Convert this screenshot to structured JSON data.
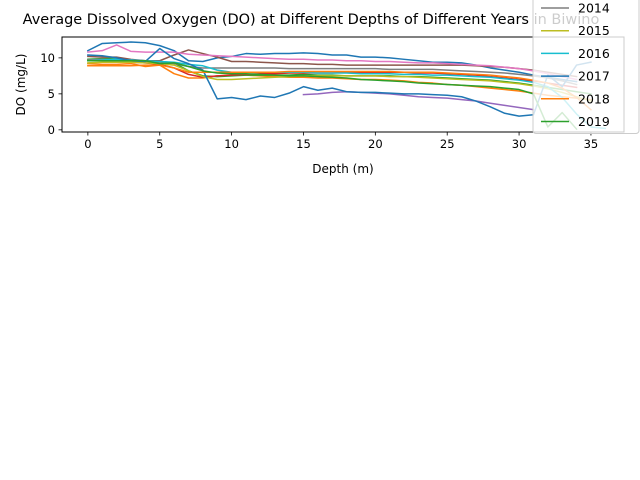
{
  "chart_data": {
    "type": "line",
    "title": "Average Dissolved Oxygen (DO) at Different Depths of Different Years in Biwino",
    "xlabel": "Depth (m)",
    "ylabel": "DO (mg/L)",
    "xlim": [
      -1.8,
      37.3
    ],
    "ylim": [
      -0.3,
      12.9
    ],
    "xticks": [
      0,
      5,
      10,
      15,
      20,
      25,
      30,
      35
    ],
    "yticks": [
      0,
      5,
      10
    ],
    "grid": false,
    "legend_position": "top-right",
    "series": [
      {
        "name": "",
        "color": "#1f77b4",
        "x": [
          0,
          1,
          2,
          3,
          4,
          5,
          6,
          7,
          8,
          9,
          10,
          11,
          12,
          13,
          14,
          15,
          16,
          17,
          18,
          19,
          20,
          21,
          22,
          23,
          24,
          25,
          26,
          27,
          28,
          29,
          30,
          31,
          32,
          33,
          34
        ],
        "y": [
          11.0,
          12.0,
          12.1,
          12.2,
          12.1,
          11.7,
          11.0,
          9.6,
          9.5,
          10.0,
          10.2,
          10.6,
          10.5,
          10.6,
          10.6,
          10.7,
          10.6,
          10.4,
          10.4,
          10.1,
          10.1,
          10.0,
          9.8,
          9.6,
          9.4,
          9.4,
          9.3,
          9.0,
          8.6,
          8.3,
          8.0,
          7.6,
          7.3,
          7.0,
          6.7
        ]
      },
      {
        "name": "",
        "color": "#ff7f0e",
        "x": [
          0,
          1,
          2,
          3,
          4,
          5,
          6,
          7,
          8,
          9,
          10,
          11,
          12,
          13,
          14,
          15,
          16,
          17,
          18,
          19,
          20,
          21,
          22,
          23,
          24,
          25,
          26,
          27,
          28,
          29,
          30,
          31,
          32,
          33,
          34,
          35
        ],
        "y": [
          9.2,
          9.1,
          9.1,
          9.2,
          8.8,
          9.0,
          7.8,
          7.2,
          7.2,
          7.5,
          7.6,
          7.6,
          7.5,
          7.4,
          7.3,
          7.3,
          7.2,
          7.2,
          7.1,
          7.0,
          7.0,
          6.9,
          6.8,
          6.6,
          6.5,
          6.3,
          6.2,
          6.0,
          5.8,
          5.6,
          5.4,
          5.1,
          4.8,
          4.6,
          4.4,
          4.2
        ]
      },
      {
        "name": "",
        "color": "#2ca02c",
        "x": [
          0,
          1,
          2,
          3,
          4,
          5,
          6,
          7,
          8,
          9,
          10,
          11,
          12,
          13,
          14,
          15,
          16,
          17,
          18,
          19,
          20,
          21,
          22,
          23,
          24,
          25,
          26,
          27,
          28,
          29,
          30,
          31,
          32,
          33,
          34,
          35
        ],
        "y": [
          9.8,
          9.9,
          10.0,
          9.7,
          9.6,
          9.5,
          9.3,
          8.2,
          7.5,
          7.4,
          7.5,
          7.6,
          7.6,
          7.6,
          7.6,
          7.7,
          7.6,
          7.6,
          7.5,
          7.5,
          7.5,
          7.5,
          7.4,
          7.4,
          7.3,
          7.2,
          7.1,
          7.0,
          6.9,
          6.7,
          6.5,
          6.2,
          5.9,
          5.6,
          5.3,
          5.0
        ]
      },
      {
        "name": "",
        "color": "#d62728",
        "x": [
          0,
          1,
          2,
          3,
          4,
          5,
          6,
          7,
          8,
          9,
          10,
          11,
          12,
          13,
          14,
          15,
          16,
          17,
          18,
          19,
          20,
          21,
          22,
          23,
          24,
          25,
          26,
          27,
          28,
          29,
          30,
          31,
          32,
          33,
          34
        ],
        "y": [
          9.6,
          9.6,
          9.5,
          9.4,
          9.3,
          9.1,
          8.6,
          7.7,
          7.3,
          7.5,
          7.6,
          7.7,
          7.8,
          7.8,
          7.9,
          7.9,
          7.9,
          7.9,
          8.0,
          8.0,
          8.0,
          8.0,
          8.0,
          7.9,
          7.9,
          7.8,
          7.7,
          7.6,
          7.4,
          7.2,
          7.0,
          6.8,
          6.5,
          6.2,
          5.9
        ]
      },
      {
        "name": "",
        "color": "#9467bd",
        "x": [
          15,
          16,
          17,
          18,
          19,
          20,
          21,
          22,
          23,
          24,
          25,
          26,
          27,
          28,
          29,
          30,
          31
        ],
        "y": [
          4.9,
          5.0,
          5.2,
          5.3,
          5.2,
          5.1,
          5.0,
          4.8,
          4.6,
          4.5,
          4.4,
          4.2,
          4.0,
          3.7,
          3.4,
          3.1,
          2.8
        ]
      },
      {
        "name": "",
        "color": "#8c564b",
        "x": [
          0,
          1,
          2,
          3,
          4,
          5,
          6,
          7,
          8,
          9,
          10,
          11,
          12,
          13,
          14,
          15,
          16,
          17,
          18,
          19,
          20,
          21,
          22,
          23,
          24,
          25,
          26,
          27,
          28,
          29,
          30,
          31,
          32,
          33,
          34
        ],
        "y": [
          10.2,
          10.1,
          10.1,
          9.8,
          9.6,
          9.6,
          10.4,
          11.1,
          10.6,
          10.1,
          9.5,
          9.5,
          9.4,
          9.3,
          9.2,
          9.2,
          9.1,
          9.1,
          9.0,
          9.0,
          9.0,
          9.0,
          9.0,
          9.0,
          9.0,
          9.0,
          9.0,
          8.9,
          8.8,
          8.7,
          8.5,
          8.3,
          8.0,
          7.7,
          7.4
        ]
      },
      {
        "name": "",
        "color": "#e377c2",
        "x": [
          0,
          1,
          2,
          3,
          4,
          5,
          6,
          7,
          8,
          9,
          10,
          11,
          12,
          13,
          14,
          15,
          16,
          17,
          18,
          19,
          20,
          21,
          22,
          23,
          24,
          25,
          26,
          27,
          28,
          29,
          30,
          31,
          32,
          33,
          34
        ],
        "y": [
          10.8,
          11.0,
          11.8,
          10.9,
          10.8,
          10.8,
          10.8,
          10.5,
          10.4,
          10.3,
          10.2,
          10.1,
          10.0,
          9.9,
          9.8,
          9.8,
          9.7,
          9.7,
          9.6,
          9.6,
          9.5,
          9.5,
          9.4,
          9.3,
          9.3,
          9.2,
          9.1,
          9.0,
          8.9,
          8.7,
          8.5,
          8.2,
          7.8,
          7.4,
          7.0
        ]
      },
      {
        "name": "2014",
        "color": "#7f7f7f",
        "x": [
          0,
          1,
          2,
          3,
          4,
          5,
          6,
          7,
          8,
          9,
          10,
          11,
          12,
          13,
          14,
          15,
          16,
          17,
          18,
          19,
          20,
          21,
          22,
          23,
          24,
          25,
          26,
          27,
          28,
          29,
          30,
          31,
          32,
          33,
          34
        ],
        "y": [
          9.7,
          9.8,
          9.7,
          9.6,
          9.5,
          9.3,
          9.2,
          8.8,
          8.6,
          8.6,
          8.6,
          8.6,
          8.6,
          8.6,
          8.5,
          8.5,
          8.5,
          8.5,
          8.5,
          8.5,
          8.5,
          8.4,
          8.4,
          8.4,
          8.4,
          8.3,
          8.2,
          8.1,
          8.0,
          7.9,
          7.7,
          7.5,
          7.2,
          6.8,
          6.3
        ]
      },
      {
        "name": "2015",
        "color": "#bcbd22",
        "x": [
          0,
          1,
          2,
          3,
          4,
          5,
          6,
          7,
          8,
          9,
          10,
          11,
          12,
          13,
          14,
          15,
          16,
          17,
          18,
          19,
          20,
          21,
          22,
          23,
          24,
          25,
          26,
          27,
          28,
          29,
          30,
          31,
          32,
          33,
          34,
          35
        ],
        "y": [
          9.3,
          9.4,
          9.4,
          9.4,
          9.3,
          9.2,
          9.0,
          8.2,
          7.4,
          7.0,
          7.0,
          7.1,
          7.2,
          7.3,
          7.4,
          7.5,
          7.5,
          7.5,
          7.5,
          7.5,
          7.5,
          7.4,
          7.4,
          7.3,
          7.2,
          7.1,
          7.0,
          6.9,
          6.8,
          6.6,
          6.4,
          6.1,
          5.7,
          5.2,
          4.6,
          4.0
        ]
      },
      {
        "name": "2016",
        "color": "#17becf",
        "x": [
          0,
          1,
          2,
          3,
          4,
          5,
          6,
          7,
          8,
          9,
          10,
          11,
          12,
          13,
          14,
          15,
          16,
          17,
          18,
          19,
          20,
          21,
          22,
          23,
          24,
          25,
          26,
          27,
          28,
          29,
          30,
          31,
          32,
          33,
          34,
          35,
          36
        ],
        "y": [
          9.6,
          9.7,
          9.8,
          9.7,
          9.6,
          9.5,
          9.4,
          9.1,
          8.9,
          8.3,
          8.0,
          8.0,
          8.0,
          8.0,
          8.0,
          8.0,
          7.9,
          7.9,
          7.9,
          7.8,
          7.8,
          7.8,
          7.7,
          7.7,
          7.6,
          7.6,
          7.5,
          7.4,
          7.3,
          7.1,
          6.9,
          6.6,
          6.0,
          4.5,
          2.2,
          0.4,
          0.2
        ]
      },
      {
        "name": "2017",
        "color": "#1f77b4",
        "x": [
          0,
          1,
          2,
          3,
          4,
          5,
          6,
          7,
          8,
          9,
          10,
          11,
          12,
          13,
          14,
          15,
          16,
          17,
          18,
          19,
          20,
          21,
          22,
          23,
          24,
          25,
          26,
          27,
          28,
          29,
          30,
          31,
          32,
          33,
          34,
          35
        ],
        "y": [
          10.4,
          10.3,
          10.0,
          9.6,
          9.5,
          11.3,
          9.9,
          9.2,
          8.3,
          4.3,
          4.5,
          4.2,
          4.7,
          4.5,
          5.1,
          6.0,
          5.5,
          5.8,
          5.3,
          5.2,
          5.2,
          5.1,
          5.0,
          5.0,
          4.9,
          4.8,
          4.6,
          4.0,
          3.2,
          2.3,
          1.9,
          2.1,
          7.6,
          6.0,
          9.0,
          9.4
        ]
      },
      {
        "name": "2018",
        "color": "#ff7f0e",
        "x": [
          0,
          1,
          2,
          3,
          4,
          5,
          6,
          7,
          8,
          9,
          10,
          11,
          12,
          13,
          14,
          15,
          16,
          17,
          18,
          19,
          20,
          21,
          22,
          23,
          24,
          25,
          26,
          27,
          28,
          29,
          30,
          31,
          32,
          33,
          34,
          35
        ],
        "y": [
          8.9,
          8.9,
          8.9,
          8.9,
          9.0,
          9.0,
          8.6,
          8.0,
          8.0,
          8.0,
          8.0,
          8.0,
          8.0,
          8.0,
          8.1,
          8.1,
          8.1,
          8.1,
          8.1,
          8.1,
          8.1,
          8.1,
          8.0,
          8.0,
          8.0,
          7.9,
          7.8,
          7.7,
          7.6,
          7.4,
          7.2,
          6.9,
          6.5,
          5.8,
          4.5,
          2.8
        ]
      },
      {
        "name": "2019",
        "color": "#2ca02c",
        "x": [
          0,
          1,
          2,
          3,
          4,
          5,
          6,
          7,
          8,
          9,
          10,
          11,
          12,
          13,
          14,
          15,
          16,
          17,
          18,
          19,
          20,
          21,
          22,
          23,
          24,
          25,
          26,
          27,
          28,
          29,
          30,
          31,
          32,
          33,
          34
        ],
        "y": [
          9.6,
          9.6,
          9.6,
          9.6,
          9.6,
          9.2,
          9.3,
          8.8,
          8.2,
          7.9,
          7.8,
          7.8,
          7.7,
          7.6,
          7.5,
          7.5,
          7.4,
          7.3,
          7.2,
          7.0,
          6.9,
          6.8,
          6.7,
          6.5,
          6.4,
          6.3,
          6.2,
          6.1,
          6.0,
          5.8,
          5.6,
          5.0,
          0.4,
          2.4,
          0.1
        ]
      }
    ]
  }
}
